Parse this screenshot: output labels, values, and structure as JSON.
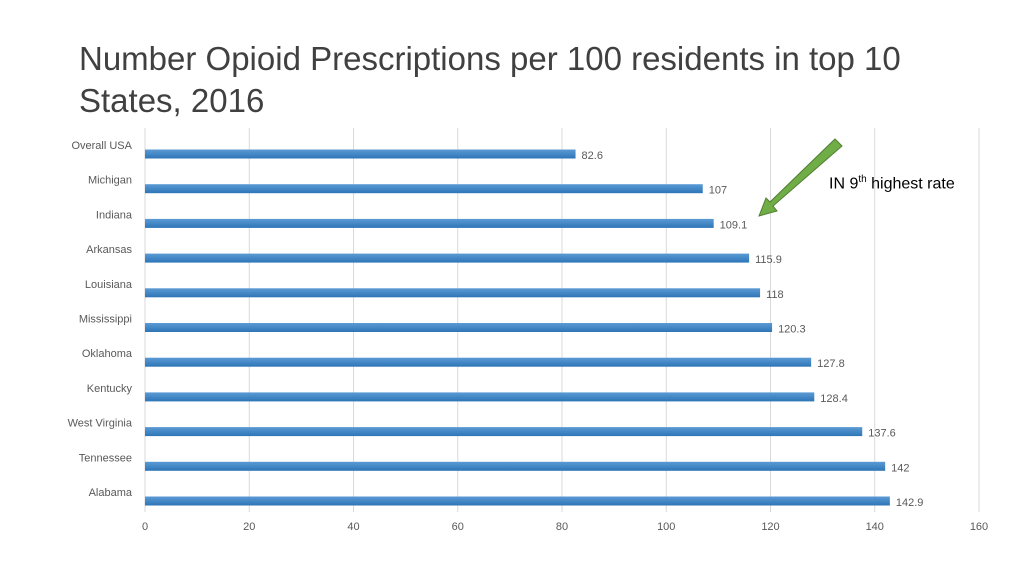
{
  "title": "Number Opioid Prescriptions per 100 residents in top 10 States, 2016",
  "annotation": {
    "prefix": "IN 9",
    "superscript": "th",
    "suffix": " highest rate"
  },
  "colors": {
    "bar": "#5b9bd5",
    "bar_dark": "#2e75b6",
    "arrow": "#70ad47",
    "grid": "#d9d9d9"
  },
  "chart_data": {
    "type": "bar",
    "orientation": "horizontal",
    "categories": [
      "Overall USA",
      "Michigan",
      "Indiana",
      "Arkansas",
      "Louisiana",
      "Mississippi",
      "Oklahoma",
      "Kentucky",
      "West Virginia",
      "Tennessee",
      "Alabama"
    ],
    "values": [
      82.6,
      107,
      109.1,
      115.9,
      118,
      120.3,
      127.8,
      128.4,
      137.6,
      142,
      142.9
    ],
    "value_labels": [
      "82.6",
      "107",
      "109.1",
      "115.9",
      "118",
      "120.3",
      "127.8",
      "128.4",
      "137.6",
      "142",
      "142.9"
    ],
    "xlim": [
      0,
      160
    ],
    "xticks": [
      0,
      20,
      40,
      60,
      80,
      100,
      120,
      140,
      160
    ],
    "xlabel": "",
    "ylabel": "",
    "grid": true,
    "legend": "none"
  }
}
